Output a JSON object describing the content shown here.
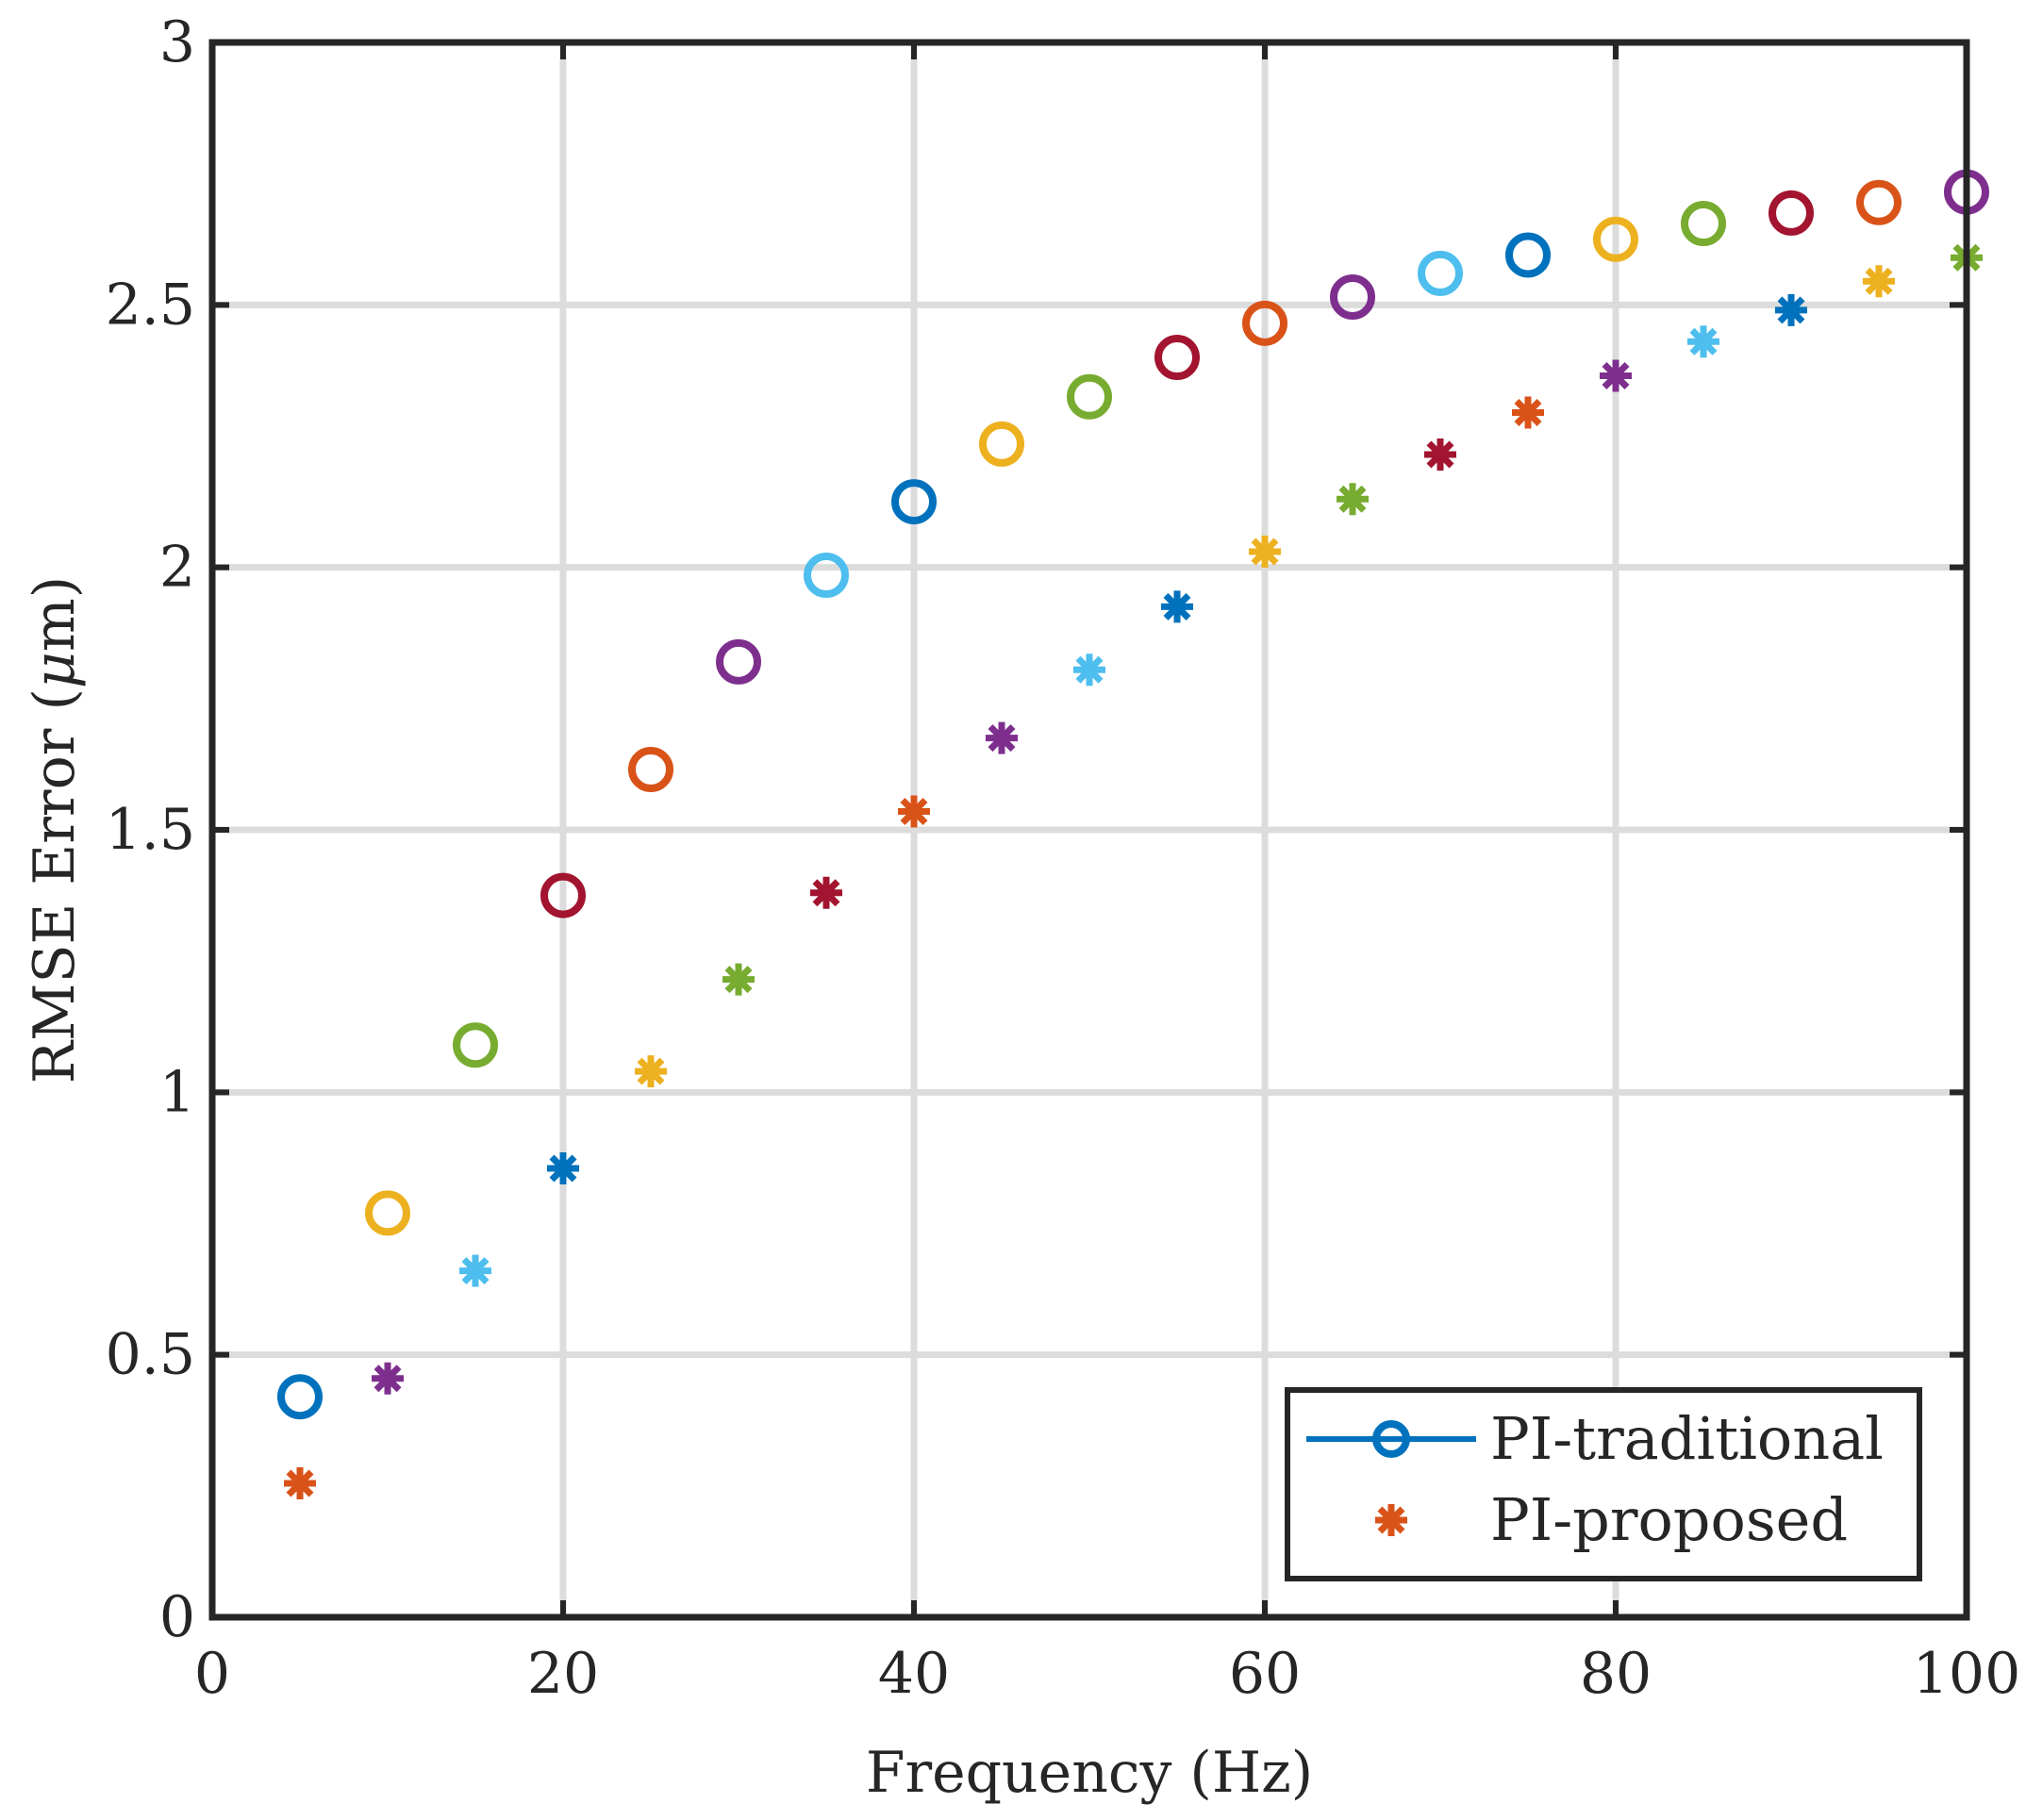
{
  "chart_data": {
    "type": "scatter",
    "title": "",
    "xlabel": "Frequency (Hz)",
    "ylabel_main": "RMSE Error (",
    "ylabel_symbol": "μ",
    "ylabel_tail": "m)",
    "xlim": [
      0,
      100
    ],
    "ylim": [
      0,
      3
    ],
    "xticks": [
      0,
      20,
      40,
      60,
      80,
      100
    ],
    "xtick_labels": [
      "0",
      "20",
      "40",
      "60",
      "80",
      "100"
    ],
    "yticks": [
      0,
      0.5,
      1,
      1.5,
      2,
      2.5,
      3
    ],
    "ytick_labels": [
      "0",
      "0.5",
      "1",
      "1.5",
      "2",
      "2.5",
      "3"
    ],
    "grid": true,
    "legend_position": "bottom-right",
    "color_cycle": [
      "#0072BD",
      "#D95319",
      "#EDB120",
      "#7E2F8E",
      "#77AC30",
      "#4DBEEE",
      "#A2142F"
    ],
    "series": [
      {
        "name": "PI-traditional",
        "marker": "circle",
        "x": [
          5,
          10,
          15,
          20,
          25,
          30,
          35,
          40,
          45,
          50,
          55,
          60,
          65,
          70,
          75,
          80,
          85,
          90,
          95,
          100
        ],
        "y": [
          0.42,
          0.77,
          1.09,
          1.375,
          1.615,
          1.82,
          1.985,
          2.125,
          2.235,
          2.325,
          2.4,
          2.465,
          2.515,
          2.56,
          2.595,
          2.625,
          2.655,
          2.675,
          2.695,
          2.715
        ],
        "colors": [
          "#0072BD",
          "#EDB120",
          "#77AC30",
          "#A2142F",
          "#D95319",
          "#7E2F8E",
          "#4DBEEE",
          "#0072BD",
          "#EDB120",
          "#77AC30",
          "#A2142F",
          "#D95319",
          "#7E2F8E",
          "#4DBEEE",
          "#0072BD",
          "#EDB120",
          "#77AC30",
          "#A2142F",
          "#D95319",
          "#7E2F8E"
        ],
        "legend_color": "#0072BD"
      },
      {
        "name": "PI-proposed",
        "marker": "asterisk",
        "x": [
          5,
          10,
          15,
          20,
          25,
          30,
          35,
          40,
          45,
          50,
          55,
          60,
          65,
          70,
          75,
          80,
          85,
          90,
          95,
          100
        ],
        "y": [
          0.255,
          0.455,
          0.66,
          0.855,
          1.04,
          1.215,
          1.38,
          1.535,
          1.675,
          1.805,
          1.925,
          2.03,
          2.13,
          2.215,
          2.295,
          2.365,
          2.43,
          2.49,
          2.545,
          2.59
        ],
        "colors": [
          "#D95319",
          "#7E2F8E",
          "#4DBEEE",
          "#0072BD",
          "#EDB120",
          "#77AC30",
          "#A2142F",
          "#D95319",
          "#7E2F8E",
          "#4DBEEE",
          "#0072BD",
          "#EDB120",
          "#77AC30",
          "#A2142F",
          "#D95319",
          "#7E2F8E",
          "#4DBEEE",
          "#0072BD",
          "#EDB120",
          "#77AC30"
        ],
        "legend_color": "#D95319"
      }
    ]
  }
}
